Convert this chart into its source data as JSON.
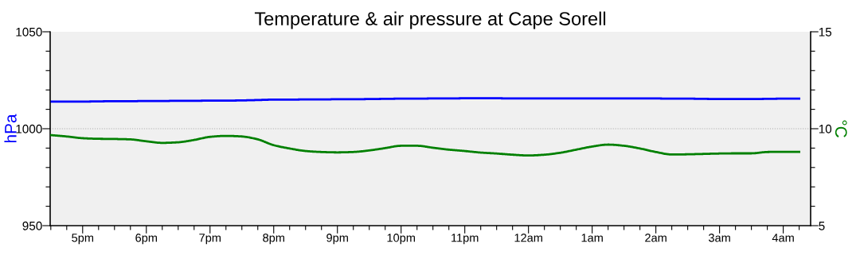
{
  "chart_data": {
    "type": "line",
    "title": "Temperature & air pressure at Cape Sorell",
    "ylabel": "hPa",
    "y2label": "°C",
    "categories": [
      null,
      null,
      "5pm",
      null,
      null,
      null,
      "6pm",
      null,
      null,
      null,
      "7pm",
      null,
      null,
      null,
      "8pm",
      null,
      null,
      null,
      "9pm",
      null,
      null,
      null,
      "10pm",
      null,
      null,
      null,
      "11pm",
      null,
      null,
      null,
      "12am",
      null,
      null,
      null,
      "1am",
      null,
      null,
      null,
      "2am",
      null,
      null,
      null,
      "3am",
      null,
      null,
      null,
      "4am",
      null
    ],
    "series": [
      {
        "color": "#0000ff",
        "axis": "y",
        "values": [
          1014,
          1014,
          1014,
          1014.1,
          1014.2,
          1014.2,
          1014.3,
          1014.3,
          1014.4,
          1014.4,
          1014.5,
          1014.5,
          1014.6,
          1014.8,
          1015,
          1015,
          1015.1,
          1015.1,
          1015.2,
          1015.2,
          1015.3,
          1015.4,
          1015.5,
          1015.5,
          1015.6,
          1015.6,
          1015.7,
          1015.7,
          1015.7,
          1015.6,
          1015.6,
          1015.6,
          1015.6,
          1015.6,
          1015.6,
          1015.6,
          1015.6,
          1015.6,
          1015.6,
          1015.5,
          1015.5,
          1015.4,
          1015.3,
          1015.3,
          1015.3,
          1015.4,
          1015.5,
          1015.5
        ]
      },
      {
        "color": "#008000",
        "axis": "y2",
        "values": [
          9.67,
          9.6,
          9.51,
          9.48,
          9.47,
          9.45,
          9.35,
          9.27,
          9.3,
          9.42,
          9.58,
          9.63,
          9.6,
          9.45,
          9.15,
          8.98,
          8.85,
          8.8,
          8.78,
          8.8,
          8.88,
          9.0,
          9.12,
          9.12,
          9.02,
          8.92,
          8.85,
          8.77,
          8.72,
          8.66,
          8.62,
          8.66,
          8.76,
          8.92,
          9.08,
          9.18,
          9.12,
          8.98,
          8.8,
          8.67,
          8.68,
          8.7,
          8.72,
          8.73,
          8.73,
          8.8,
          8.81,
          8.81
        ]
      }
    ],
    "ylim": [
      950,
      1050
    ],
    "yticks": [
      950,
      {
        "value": 960,
        "label": null
      },
      {
        "value": 970,
        "label": null
      },
      {
        "value": 980,
        "label": null
      },
      {
        "value": 990,
        "label": null
      },
      1000,
      {
        "value": 1010,
        "label": null
      },
      {
        "value": 1020,
        "label": null
      },
      {
        "value": 1030,
        "label": null
      },
      {
        "value": 1040,
        "label": null
      },
      1050
    ],
    "y2lim": [
      5,
      15
    ],
    "y2ticks": [
      5,
      {
        "value": 6,
        "label": null
      },
      {
        "value": 7,
        "label": null
      },
      {
        "value": 8,
        "label": null
      },
      {
        "value": 9,
        "label": null
      },
      10,
      {
        "value": 11,
        "label": null
      },
      {
        "value": 12,
        "label": null
      },
      {
        "value": 13,
        "label": null
      },
      {
        "value": 14,
        "label": null
      },
      15
    ],
    "ref_lines": [
      {
        "axis": "y",
        "value": 1000,
        "label": null,
        "color": "#aaaaaa",
        "line_style": "dotted"
      }
    ],
    "grid": false,
    "legend": false,
    "marker": "none",
    "line_style": "solid"
  }
}
